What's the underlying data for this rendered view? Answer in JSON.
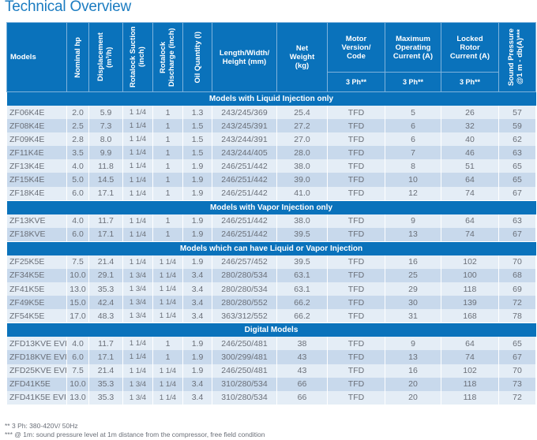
{
  "title": "Technical Overview",
  "headers": {
    "models": "Models",
    "hp": "Nominal hp",
    "displacement": "Displacement (m³/h)",
    "suction": "Rotalock Suction (inch)",
    "discharge": "Rotalock Discharge (inch)",
    "oil": "Oil Quantity (l)",
    "dims": "Length/Width/ Height (mm)",
    "weight": "Net Weight (kg)",
    "motor": "Motor Version/ Code",
    "max_current": "Maximum Operating Current (A)",
    "locked_current": "Locked Rotor Current (A)",
    "sound": "Sound Pressure @1 m - db(A)***",
    "phase_motor": "3 Ph**",
    "phase_max": "3 Ph**",
    "phase_locked": "3 Ph**"
  },
  "sections": [
    {
      "title": "Models with Liquid Injection only",
      "rows": [
        [
          "ZF06K4E",
          "2.0",
          "5.9",
          "1 1/4",
          "1",
          "1.3",
          "243/245/369",
          "25.4",
          "TFD",
          "5",
          "26",
          "57"
        ],
        [
          "ZF08K4E",
          "2.5",
          "7.3",
          "1 1/4",
          "1",
          "1.5",
          "243/245/391",
          "27.2",
          "TFD",
          "6",
          "32",
          "59"
        ],
        [
          "ZF09K4E",
          "2.8",
          "8.0",
          "1 1/4",
          "1",
          "1.5",
          "243/244/391",
          "27.0",
          "TFD",
          "6",
          "40",
          "62"
        ],
        [
          "ZF11K4E",
          "3.5",
          "9.9",
          "1 1/4",
          "1",
          "1.5",
          "243/244/405",
          "28.0",
          "TFD",
          "7",
          "46",
          "63"
        ],
        [
          "ZF13K4E",
          "4.0",
          "11.8",
          "1 1/4",
          "1",
          "1.9",
          "246/251/442",
          "38.0",
          "TFD",
          "8",
          "51",
          "65"
        ],
        [
          "ZF15K4E",
          "5.0",
          "14.5",
          "1 1/4",
          "1",
          "1.9",
          "246/251/442",
          "39.0",
          "TFD",
          "10",
          "64",
          "65"
        ],
        [
          "ZF18K4E",
          "6.0",
          "17.1",
          "1 1/4",
          "1",
          "1.9",
          "246/251/442",
          "41.0",
          "TFD",
          "12",
          "74",
          "67"
        ]
      ]
    },
    {
      "title": "Models with Vapor Injection only",
      "rows": [
        [
          "ZF13KVE",
          "4.0",
          "11.7",
          "1 1/4",
          "1",
          "1.9",
          "246/251/442",
          "38.0",
          "TFD",
          "9",
          "64",
          "63"
        ],
        [
          "ZF18KVE",
          "6.0",
          "17.1",
          "1 1/4",
          "1",
          "1.9",
          "246/251/442",
          "39.5",
          "TFD",
          "13",
          "74",
          "67"
        ]
      ]
    },
    {
      "title": "Models which can have Liquid or Vapor Injection",
      "rows": [
        [
          "ZF25K5E",
          "7.5",
          "21.4",
          "1 1/4",
          "1 1/4",
          "1.9",
          "246/257/452",
          "39.5",
          "TFD",
          "16",
          "102",
          "70"
        ],
        [
          "ZF34K5E",
          "10.0",
          "29.1",
          "1 3/4",
          "1 1/4",
          "3.4",
          "280/280/534",
          "63.1",
          "TFD",
          "25",
          "100",
          "68"
        ],
        [
          "ZF41K5E",
          "13.0",
          "35.3",
          "1 3/4",
          "1 1/4",
          "3.4",
          "280/280/534",
          "63.1",
          "TFD",
          "29",
          "118",
          "69"
        ],
        [
          "ZF49K5E",
          "15.0",
          "42.4",
          "1 3/4",
          "1 1/4",
          "3.4",
          "280/280/552",
          "66.2",
          "TFD",
          "30",
          "139",
          "72"
        ],
        [
          "ZF54K5E",
          "17.0",
          "48.3",
          "1 3/4",
          "1 1/4",
          "3.4",
          "363/312/552",
          "66.2",
          "TFD",
          "31",
          "168",
          "78"
        ]
      ]
    },
    {
      "title": "Digital Models",
      "rows": [
        [
          "ZFD13KVE EVI",
          "4.0",
          "11.7",
          "1 1/4",
          "1",
          "1.9",
          "246/250/481",
          "38",
          "TFD",
          "9",
          "64",
          "65"
        ],
        [
          "ZFD18KVE EVI",
          "6.0",
          "17.1",
          "1 1/4",
          "1",
          "1.9",
          "300/299/481",
          "43",
          "TFD",
          "13",
          "74",
          "67"
        ],
        [
          "ZFD25KVE EVI",
          "7.5",
          "21.4",
          "1 1/4",
          "1 1/4",
          "1.9",
          "246/250/481",
          "43",
          "TFD",
          "16",
          "102",
          "70"
        ],
        [
          "ZFD41K5E",
          "10.0",
          "35.3",
          "1 3/4",
          "1 1/4",
          "3.4",
          "310/280/534",
          "66",
          "TFD",
          "20",
          "118",
          "73"
        ],
        [
          "ZFD41K5E EVI",
          "13.0",
          "35.3",
          "1 3/4",
          "1 1/4",
          "3.4",
          "310/280/534",
          "66",
          "TFD",
          "20",
          "118",
          "72"
        ]
      ]
    }
  ],
  "footnotes": [
    "** 3 Ph: 380-420V/ 50Hz",
    "*** @ 1m: sound pressure level at 1m distance from the compressor, free field condition"
  ]
}
